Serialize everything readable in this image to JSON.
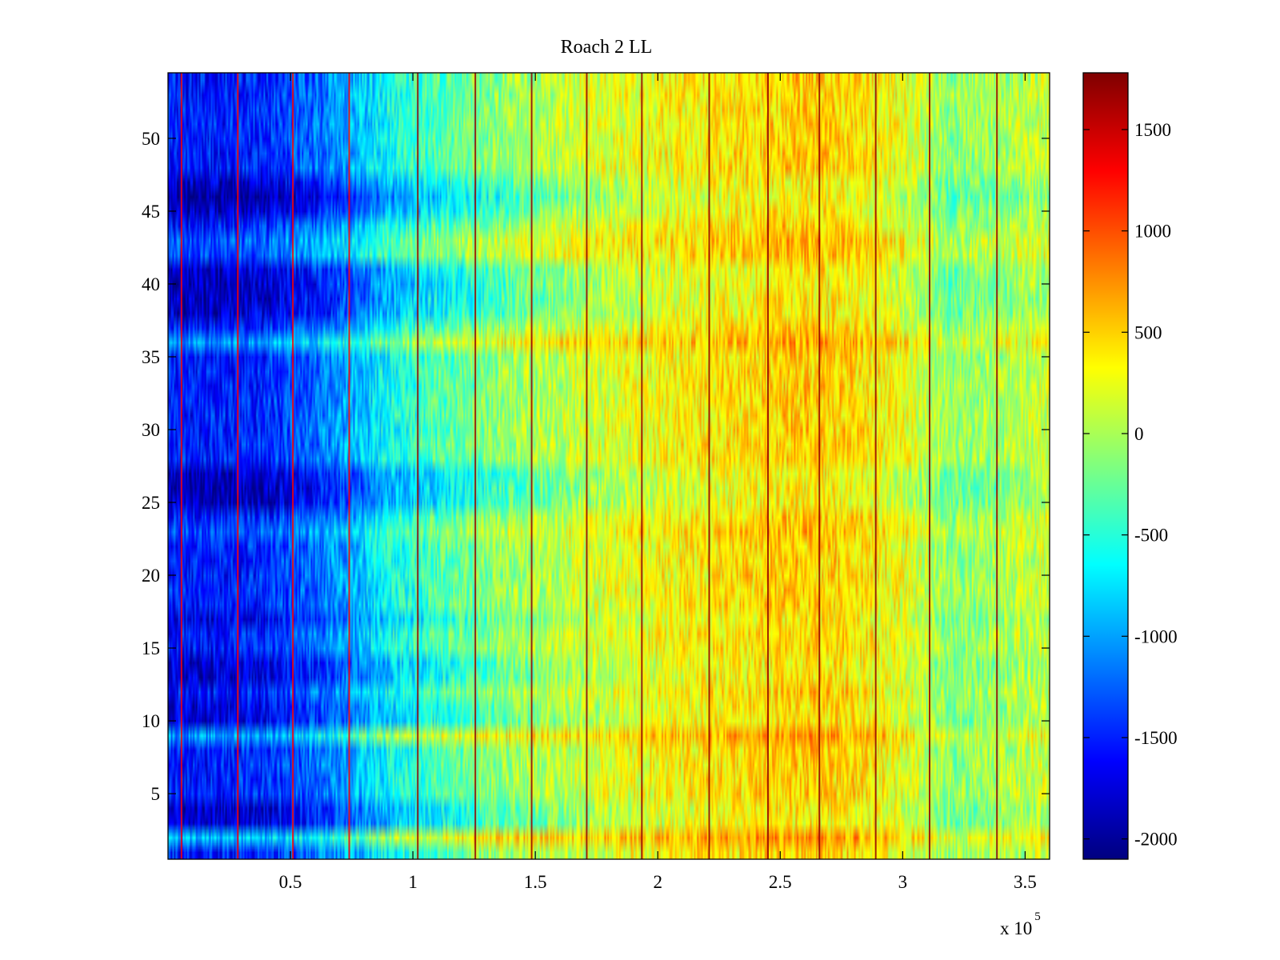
{
  "chart_data": {
    "type": "heatmap",
    "title": "Roach 2 LL",
    "xlabel": "",
    "ylabel": "",
    "x_exponent_label": "x 10",
    "x_exponent_power": "5",
    "xlim": [
      0,
      360000
    ],
    "ylim": [
      0.5,
      54.5
    ],
    "rows": 54,
    "columns": 600,
    "x_ticks": [
      {
        "value": 50000,
        "label": "0.5"
      },
      {
        "value": 100000,
        "label": "1"
      },
      {
        "value": 150000,
        "label": "1.5"
      },
      {
        "value": 200000,
        "label": "2"
      },
      {
        "value": 250000,
        "label": "2.5"
      },
      {
        "value": 300000,
        "label": "3"
      },
      {
        "value": 350000,
        "label": "3.5"
      }
    ],
    "y_ticks": [
      {
        "value": 5,
        "label": "5"
      },
      {
        "value": 10,
        "label": "10"
      },
      {
        "value": 15,
        "label": "15"
      },
      {
        "value": 20,
        "label": "20"
      },
      {
        "value": 25,
        "label": "25"
      },
      {
        "value": 30,
        "label": "30"
      },
      {
        "value": 35,
        "label": "35"
      },
      {
        "value": 40,
        "label": "40"
      },
      {
        "value": 45,
        "label": "45"
      },
      {
        "value": 50,
        "label": "50"
      }
    ],
    "colorbar": {
      "colormap": "jet",
      "clim": [
        -2100,
        1780
      ],
      "ticks": [
        {
          "value": 1500,
          "label": "1500"
        },
        {
          "value": 1000,
          "label": "1000"
        },
        {
          "value": 500,
          "label": "500"
        },
        {
          "value": 0,
          "label": "0"
        },
        {
          "value": -500,
          "label": "-500"
        },
        {
          "value": -1000,
          "label": "-1000"
        },
        {
          "value": -1500,
          "label": "-1500"
        },
        {
          "value": -2000,
          "label": "-2000"
        }
      ]
    },
    "column_trend": [
      {
        "x": 0,
        "value": -1500
      },
      {
        "x": 10000,
        "value": -1550
      },
      {
        "x": 40000,
        "value": -1450
      },
      {
        "x": 60000,
        "value": -1200
      },
      {
        "x": 75000,
        "value": -950
      },
      {
        "x": 90000,
        "value": -600
      },
      {
        "x": 110000,
        "value": -350
      },
      {
        "x": 140000,
        "value": -50
      },
      {
        "x": 170000,
        "value": 150
      },
      {
        "x": 200000,
        "value": 300
      },
      {
        "x": 230000,
        "value": 420
      },
      {
        "x": 260000,
        "value": 520
      },
      {
        "x": 280000,
        "value": 450
      },
      {
        "x": 300000,
        "value": 250
      },
      {
        "x": 320000,
        "value": -100
      },
      {
        "x": 340000,
        "value": 0
      },
      {
        "x": 360000,
        "value": 150
      }
    ],
    "row_offsets": [
      {
        "row": 2,
        "value": 600
      },
      {
        "row": 3,
        "value": -300
      },
      {
        "row": 4,
        "value": -300
      },
      {
        "row": 9,
        "value": 500
      },
      {
        "row": 10,
        "value": -200
      },
      {
        "row": 11,
        "value": -200
      },
      {
        "row": 13,
        "value": -250
      },
      {
        "row": 14,
        "value": -250
      },
      {
        "row": 17,
        "value": -200
      },
      {
        "row": 23,
        "value": 200
      },
      {
        "row": 25,
        "value": -350
      },
      {
        "row": 26,
        "value": -400
      },
      {
        "row": 27,
        "value": -350
      },
      {
        "row": 36,
        "value": 450
      },
      {
        "row": 38,
        "value": -300
      },
      {
        "row": 39,
        "value": -350
      },
      {
        "row": 40,
        "value": -350
      },
      {
        "row": 41,
        "value": -300
      },
      {
        "row": 42,
        "value": 200
      },
      {
        "row": 43,
        "value": 250
      },
      {
        "row": 45,
        "value": -300
      },
      {
        "row": 46,
        "value": -500
      },
      {
        "row": 47,
        "value": -300
      }
    ],
    "vertical_lines": [
      {
        "x": 5500,
        "value": 1300
      },
      {
        "x": 28500,
        "value": 1300
      },
      {
        "x": 51000,
        "value": 1300
      },
      {
        "x": 74000,
        "value": 1300
      },
      {
        "x": 102000,
        "value": 1700
      },
      {
        "x": 125500,
        "value": 1700
      },
      {
        "x": 148500,
        "value": 1700
      },
      {
        "x": 171000,
        "value": 1700
      },
      {
        "x": 193500,
        "value": 1700
      },
      {
        "x": 221000,
        "value": 1700
      },
      {
        "x": 245000,
        "value": 1700
      },
      {
        "x": 266000,
        "value": 1700
      },
      {
        "x": 289000,
        "value": 1700
      },
      {
        "x": 311000,
        "value": 1700
      },
      {
        "x": 338500,
        "value": 1700
      }
    ]
  }
}
